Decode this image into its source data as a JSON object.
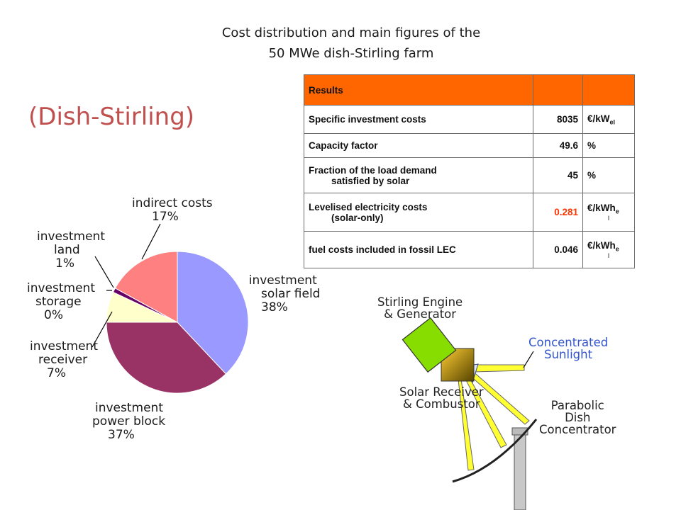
{
  "header": {
    "title_line1": "Cost distribution and main figures of the",
    "title_line2": "50 MWe dish-Stirling farm",
    "heading": "(Dish-Stirling)"
  },
  "chart_data": {
    "type": "pie",
    "title": "",
    "slices": [
      {
        "label_lines": [
          "investment",
          "solar field",
          "38%"
        ],
        "value": 38,
        "color": "#9999ff"
      },
      {
        "label_lines": [
          "investment",
          "power block",
          "37%"
        ],
        "value": 37,
        "color": "#993366"
      },
      {
        "label_lines": [
          "investment",
          "receiver",
          "7%"
        ],
        "value": 7,
        "color": "#ffffcc"
      },
      {
        "label_lines": [
          "investment",
          "storage",
          "0%"
        ],
        "value": 0,
        "color": "#ccffff"
      },
      {
        "label_lines": [
          "investment",
          "land",
          "1%"
        ],
        "value": 1,
        "color": "#660066"
      },
      {
        "label_lines": [
          "indirect costs",
          "17%"
        ],
        "value": 17,
        "color": "#ff8080"
      }
    ]
  },
  "results_table": {
    "header": "Results",
    "rows": [
      {
        "label": "Specific investment costs",
        "value": "8035",
        "unit_main": "€/kW",
        "unit_sub": "el"
      },
      {
        "label": "Capacity factor",
        "value": "49.6",
        "unit_main": "%",
        "unit_sub": ""
      },
      {
        "label_line1": "Fraction of the load demand",
        "label_line2": "satisfied by solar",
        "value": "45",
        "unit_main": "%",
        "unit_sub": ""
      },
      {
        "label_line1": "Levelised electricity costs",
        "label_line2": "(solar-only)",
        "value": "0.281",
        "unit_main": "€/kWh",
        "unit_sub": "e",
        "unit_tail": "l"
      },
      {
        "label": "fuel costs included in fossil LEC",
        "value": "0.046",
        "unit_main": "€/kWh",
        "unit_sub": "e",
        "unit_tail": "l"
      }
    ],
    "highlight_color": "#ff3300",
    "header_color": "#ff6600"
  },
  "diagram": {
    "engine_line1": "Stirling Engine",
    "engine_line2": "& Generator",
    "sun_line1": "Concentrated",
    "sun_line2": "Sunlight",
    "receiver_line1": "Solar Receiver",
    "receiver_line2": "& Combustor",
    "dish_line1": "Parabolic",
    "dish_line2": "Dish",
    "dish_line3": "Concentrator"
  }
}
